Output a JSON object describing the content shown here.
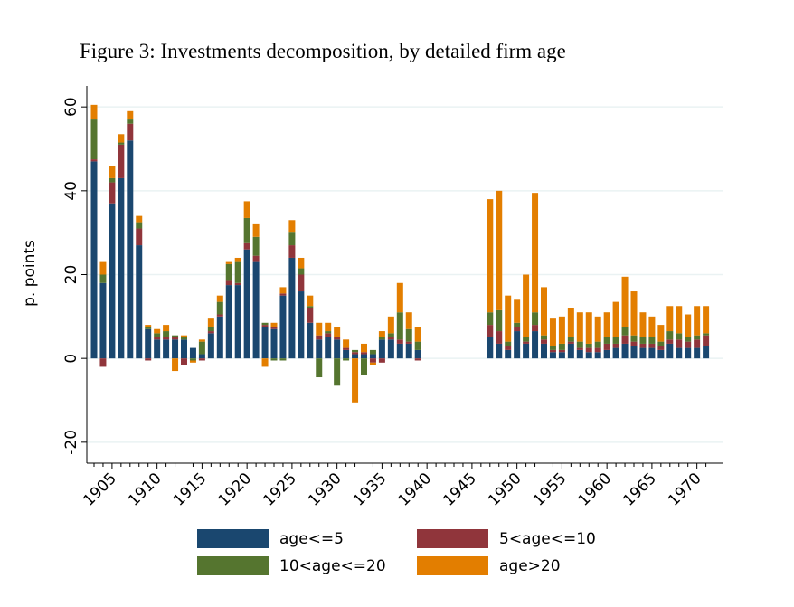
{
  "chart_data": {
    "type": "bar",
    "stacked": true,
    "title": "Figure 3: Investments decomposition, by detailed firm age",
    "y_label": "p. points",
    "categories": [
      null,
      null,
      "1905",
      null,
      null,
      null,
      null,
      "1910",
      null,
      null,
      null,
      null,
      "1915",
      null,
      null,
      null,
      null,
      "1920",
      null,
      null,
      null,
      null,
      "1925",
      null,
      null,
      null,
      null,
      "1930",
      null,
      null,
      null,
      null,
      "1935",
      null,
      null,
      null,
      null,
      "1940",
      null,
      null,
      null,
      null,
      "1945",
      null,
      null,
      null,
      null,
      "1950",
      null,
      null,
      null,
      null,
      "1955",
      null,
      null,
      null,
      null,
      "1960",
      null,
      null,
      null,
      null,
      "1965",
      null,
      null,
      null,
      null,
      "1970",
      null
    ],
    "series": [
      {
        "name": "age<=5",
        "color": "#1a476f",
        "values": [
          47,
          18,
          37,
          43,
          52,
          27,
          7,
          4.5,
          4.5,
          4.5,
          4.5,
          2.5,
          1,
          6,
          10,
          17.5,
          17.5,
          26,
          23,
          7.5,
          7,
          15,
          24,
          16,
          8.5,
          4.5,
          5,
          4.5,
          2,
          1,
          1,
          1,
          4.5,
          4.5,
          3.5,
          3.5,
          2,
          null,
          null,
          null,
          null,
          null,
          null,
          null,
          5,
          3.5,
          2,
          6.5,
          3.5,
          6.5,
          3.5,
          1.5,
          1.5,
          3.5,
          2,
          1.5,
          1.5,
          2,
          2.5,
          3.5,
          3,
          2.5,
          2.5,
          2,
          3.5,
          2.5,
          2.5,
          2.5,
          3
        ]
      },
      {
        "name": "5<age<=10",
        "color": "#90353b",
        "values": [
          0.5,
          -2,
          5,
          8,
          4,
          4,
          -0.5,
          0.5,
          0.5,
          0.5,
          -1.5,
          0,
          -0.5,
          0.5,
          0.5,
          1,
          0.5,
          1.5,
          1.5,
          0.5,
          0.5,
          0.5,
          3,
          4,
          3.5,
          1,
          1,
          0.5,
          0.5,
          0.5,
          0.5,
          -1,
          -1,
          0.5,
          1,
          0.5,
          -0.5,
          null,
          null,
          null,
          null,
          null,
          null,
          null,
          3,
          3,
          1,
          1,
          0.5,
          1.5,
          1,
          0.5,
          0.5,
          0.5,
          0.5,
          1,
          1,
          1.5,
          1,
          2,
          1,
          1,
          1,
          1,
          1,
          2,
          1.5,
          2,
          2.5
        ]
      },
      {
        "name": "10<age<=20",
        "color": "#55752f",
        "values": [
          9.5,
          2,
          1,
          0.5,
          1,
          1.5,
          0.5,
          1,
          1.5,
          0.5,
          0.5,
          -0.5,
          3,
          1,
          3,
          4,
          5,
          6,
          4.5,
          0.5,
          -0.5,
          -0.5,
          3,
          1.5,
          0.5,
          -4.5,
          0.5,
          -6.5,
          -0.5,
          0.5,
          -4,
          1,
          0.5,
          1,
          6.5,
          3,
          2,
          null,
          null,
          null,
          null,
          null,
          null,
          null,
          3,
          5,
          1,
          1,
          1,
          3,
          1,
          1,
          1.5,
          1,
          1.5,
          1,
          1.5,
          1.5,
          1.5,
          2,
          1.5,
          1.5,
          1.5,
          1,
          2,
          1.5,
          1,
          1,
          0.5
        ]
      },
      {
        "name": "age>20",
        "color": "#e37e00",
        "values": [
          3.5,
          3,
          3,
          2,
          2,
          1.5,
          0.5,
          1,
          1.5,
          -3,
          0.5,
          -0.5,
          0.5,
          2,
          1.5,
          0.5,
          1,
          4,
          3,
          -2,
          1,
          1.5,
          3,
          2.5,
          2.5,
          3,
          2,
          2.5,
          2,
          -10.5,
          2,
          -0.5,
          1.5,
          4,
          7,
          4,
          3.5,
          null,
          null,
          null,
          null,
          null,
          null,
          null,
          27,
          28.5,
          11,
          5.5,
          15,
          28.5,
          11.5,
          6.5,
          6.5,
          7,
          7,
          7.5,
          6,
          6,
          8.5,
          12,
          10.5,
          6,
          5,
          4,
          6,
          6.5,
          5.5,
          7,
          6.5
        ]
      }
    ],
    "ylim": [
      -25,
      65
    ],
    "yticks": [
      -20,
      0,
      20,
      40,
      60
    ],
    "grid": true
  }
}
